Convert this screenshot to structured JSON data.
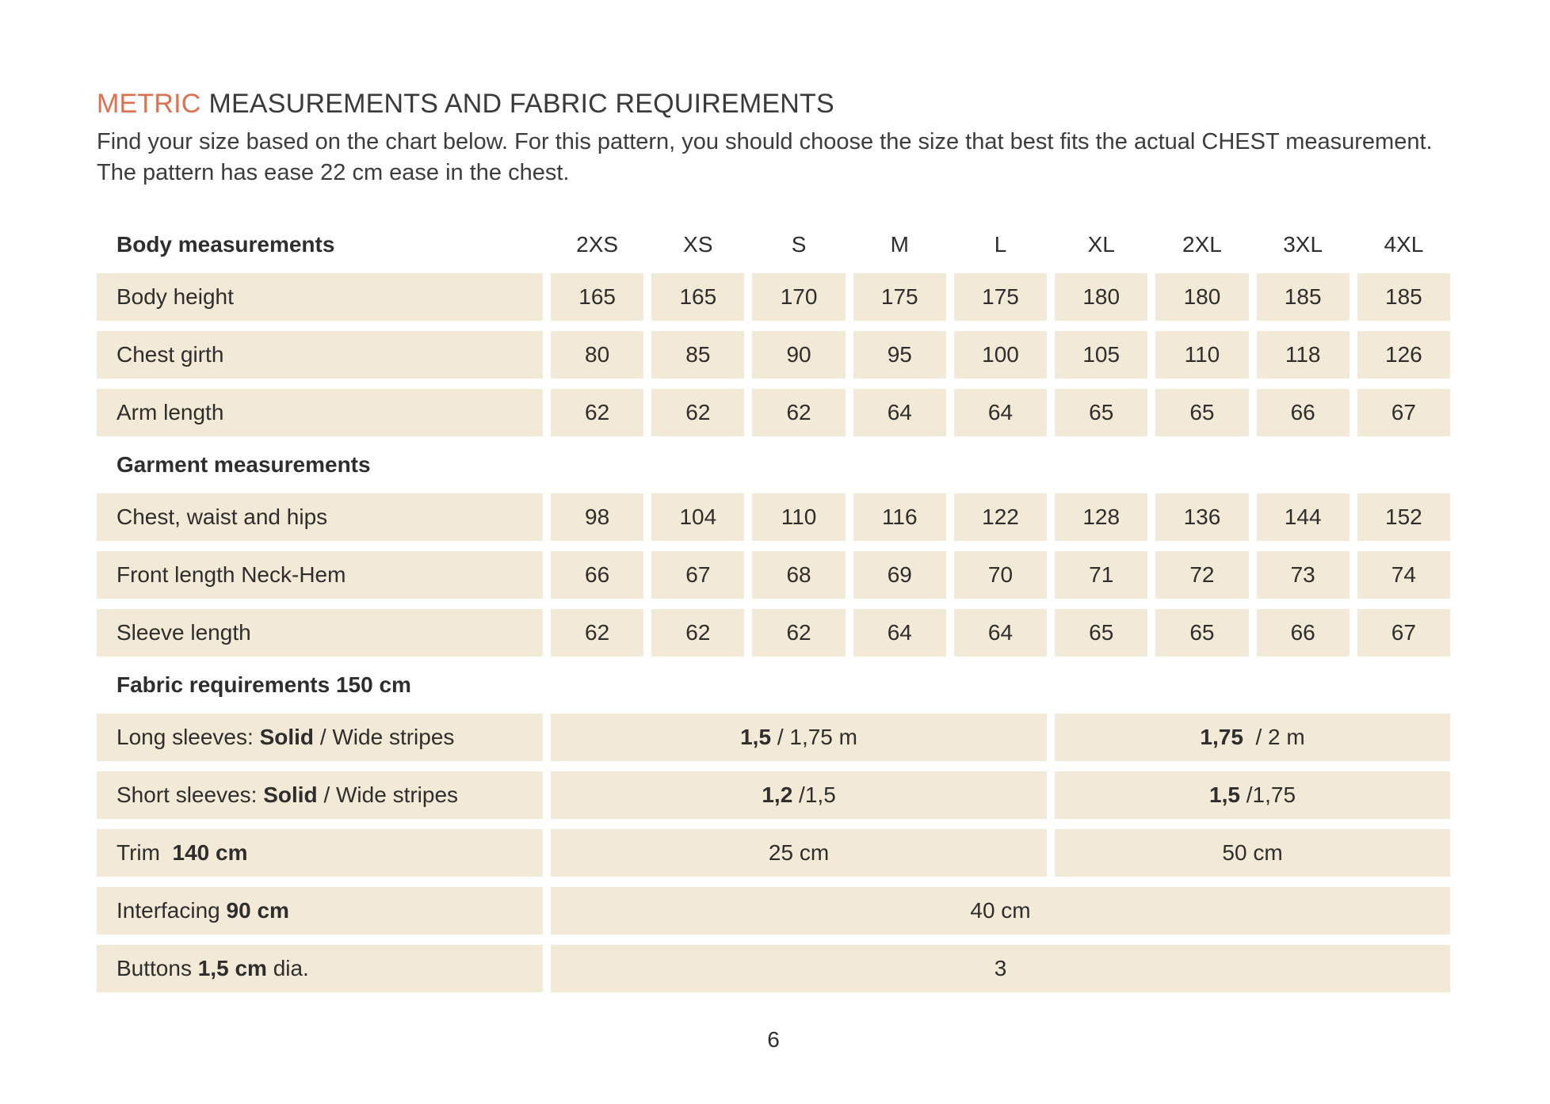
{
  "header": {
    "title_accent": "METRIC",
    "title_rest": "MEASUREMENTS AND FABRIC REQUIREMENTS",
    "intro": "Find your size based on the chart below. For this pattern, you should choose the size that best fits the actual CHEST measurement. The pattern has ease 22 cm ease in the chest."
  },
  "colors": {
    "accent_orange": "#dd7150",
    "row_beige": "#f2e9d6",
    "text_dark": "#2e2e2e"
  },
  "table": {
    "header_label": "Body measurements",
    "size_headers": [
      "2XS",
      "XS",
      "S",
      "M",
      "L",
      "XL",
      "2XL",
      "3XL",
      "4XL"
    ],
    "body_rows": [
      {
        "label": "Body height",
        "values": [
          "165",
          "165",
          "170",
          "175",
          "175",
          "180",
          "180",
          "185",
          "185"
        ]
      },
      {
        "label": "Chest girth",
        "values": [
          "80",
          "85",
          "90",
          "95",
          "100",
          "105",
          "110",
          "118",
          "126"
        ]
      },
      {
        "label": "Arm length",
        "values": [
          "62",
          "62",
          "62",
          "64",
          "64",
          "65",
          "65",
          "66",
          "67"
        ]
      }
    ],
    "garment_header": "Garment measurements",
    "garment_rows": [
      {
        "label": "Chest, waist and hips",
        "values": [
          "98",
          "104",
          "110",
          "116",
          "122",
          "128",
          "136",
          "144",
          "152"
        ]
      },
      {
        "label": "Front length Neck-Hem",
        "values": [
          "66",
          "67",
          "68",
          "69",
          "70",
          "71",
          "72",
          "73",
          "74"
        ]
      },
      {
        "label": "Sleeve length",
        "values": [
          "62",
          "62",
          "62",
          "64",
          "64",
          "65",
          "65",
          "66",
          "67"
        ]
      }
    ],
    "fabric_header": "Fabric requirements 150 cm",
    "long_sleeves": {
      "label_prefix": "Long sleeves: ",
      "label_bold": "Solid",
      "label_suffix": " / Wide stripes",
      "small_bold": "1,5",
      "small_rest": " / 1,75 m",
      "large_bold": "1,75",
      "large_rest": "  / 2 m"
    },
    "short_sleeves": {
      "label_prefix": "Short sleeves: ",
      "label_bold": "Solid",
      "label_suffix": " / Wide stripes",
      "small_bold": "1,2",
      "small_rest": " /1,5",
      "large_bold": "1,5",
      "large_rest": " /1,75"
    },
    "trim": {
      "label_prefix": "Trim  ",
      "label_bold": "140 cm",
      "label_suffix": "",
      "small_value": "25 cm",
      "large_value": "50 cm"
    },
    "interfacing": {
      "label_prefix": "Interfacing ",
      "label_bold": "90 cm",
      "label_suffix": "",
      "value": "40 cm"
    },
    "buttons": {
      "label_prefix": "Buttons ",
      "label_bold": "1,5 cm",
      "label_suffix": " dia.",
      "value": "3"
    }
  },
  "footer": {
    "page_number": "6"
  }
}
